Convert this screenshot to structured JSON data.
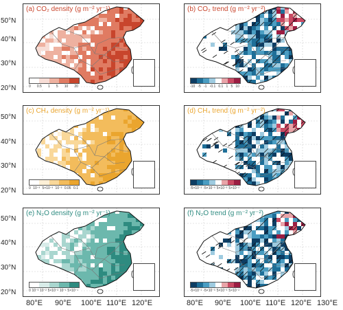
{
  "lat_labels": [
    "50°N",
    "40°N",
    "30°N",
    "20°N"
  ],
  "lon_labels": [
    "80°E",
    "90°E",
    "100°E",
    "110°E",
    "120°E",
    "130°E"
  ],
  "colors": {
    "co2_density": [
      "#ffffff",
      "#f7ddd6",
      "#eeb1a0",
      "#e07b62",
      "#c8452c"
    ],
    "ch4_density": [
      "#ffffff",
      "#fdf0d7",
      "#f9d89a",
      "#f3bc5c",
      "#eaa52e"
    ],
    "n2o_density": [
      "#ffffff",
      "#d8ece9",
      "#a9d6cf",
      "#6cb8ad",
      "#2e8b80"
    ],
    "trend": [
      "#0d3d63",
      "#1f6f98",
      "#4a9dc2",
      "#9ecbe0",
      "#ffffff",
      "#e8a4a8",
      "#c94a63",
      "#9b1d42"
    ]
  },
  "panels": [
    {
      "id": "a",
      "title": "(a) CO₂ density (g m⁻² yr⁻¹)",
      "title_color": "#c9452c",
      "legend": [
        "0",
        "0.5",
        "1",
        "5",
        "10",
        "20"
      ]
    },
    {
      "id": "b",
      "title": "(b) CO₂ trend (g m⁻² yr⁻²)",
      "title_color": "#c9452c",
      "legend": [
        "-10",
        "-5",
        "-1",
        "-0.1",
        "0.1",
        "1",
        "5",
        "10"
      ]
    },
    {
      "id": "c",
      "title": "(c) CH₄ density (g m⁻² yr⁻¹)",
      "title_color": "#eaa52e",
      "legend": [
        "0",
        "10⁻³",
        "5×10⁻³",
        "10⁻²",
        "0.05",
        "0.1"
      ]
    },
    {
      "id": "d",
      "title": "(d) CH₄ trend (g m⁻² yr⁻²)",
      "title_color": "#eaa52e",
      "legend": [
        "-5×10⁻²",
        "-5×10⁻³",
        "5×10⁻³",
        "5×10⁻²"
      ]
    },
    {
      "id": "e",
      "title": "(e) N₂O density (g m⁻² yr⁻¹)",
      "title_color": "#2e8b80",
      "legend": [
        "0",
        "10⁻³",
        "10⁻²",
        "5×10⁻²",
        "10⁻¹",
        "5×10⁻¹"
      ]
    },
    {
      "id": "f",
      "title": "(f) N₂O trend (g m⁻² yr⁻²)",
      "title_color": "#2e8b80",
      "legend": [
        "-5×10⁻²",
        "-5×10⁻³",
        "5×10⁻³",
        "5×10⁻²"
      ]
    }
  ]
}
